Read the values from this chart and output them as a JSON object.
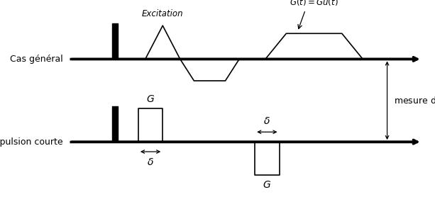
{
  "fig_width": 6.13,
  "fig_height": 2.78,
  "dpi": 100,
  "top_label": "Cas général",
  "bottom_label": "impulsion courte",
  "excitation_label": "Excitation",
  "gradient_label": "$\\vec{G}(t) = G\\vec{u}(t)$",
  "mesure_label": "mesure de $S$",
  "delta_label": "$\\delta$",
  "G_label": "$G$",
  "bg_color": "white",
  "line_color": "black",
  "pulse_color": "black",
  "axis_lw": 2.5,
  "signal_lw": 1.2
}
